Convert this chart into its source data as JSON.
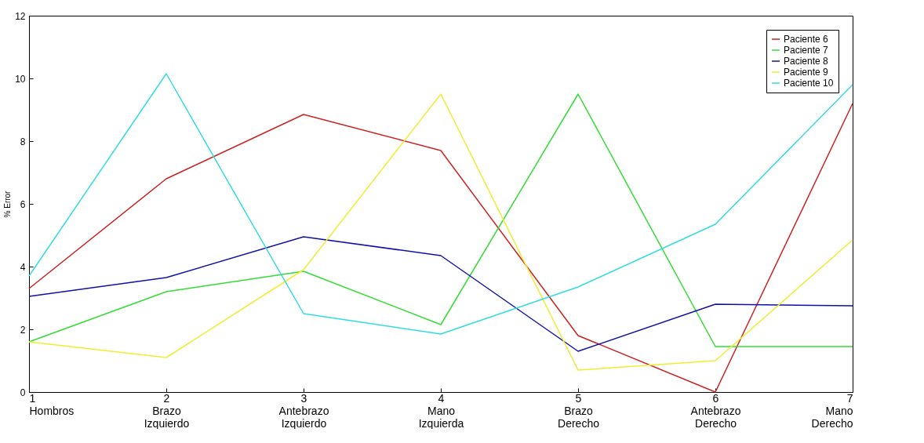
{
  "chart_data": {
    "type": "line",
    "ylabel": "% Error",
    "x": [
      1,
      2,
      3,
      4,
      5,
      6,
      7
    ],
    "xlim": [
      1,
      7
    ],
    "xticks": [
      1,
      2,
      3,
      4,
      5,
      6,
      7
    ],
    "ylim": [
      0,
      12
    ],
    "yticks": [
      0,
      2,
      4,
      6,
      8,
      10,
      12
    ],
    "annotations": [
      "Hombros",
      "Brazo Izquierdo",
      "Antebrazo Izquierdo",
      "Mano Izquierda",
      "Brazo Derecho",
      "Antebrazo Derecho",
      "Mano Derecho"
    ],
    "series": [
      {
        "name": "Paciente 6",
        "color": "#cc2222",
        "values": [
          3.3,
          6.8,
          8.85,
          7.7,
          1.8,
          0.0,
          9.2
        ]
      },
      {
        "name": "Paciente 7",
        "color": "#33dd33",
        "values": [
          1.6,
          3.2,
          3.85,
          2.15,
          9.5,
          1.45,
          1.45
        ]
      },
      {
        "name": "Paciente 8",
        "color": "#1111aa",
        "values": [
          3.05,
          3.65,
          4.95,
          4.35,
          1.3,
          2.8,
          2.75
        ]
      },
      {
        "name": "Paciente 9",
        "color": "#eeee33",
        "values": [
          1.6,
          1.1,
          3.9,
          9.5,
          0.7,
          1.0,
          4.85
        ]
      },
      {
        "name": "Paciente 10",
        "color": "#33dddd",
        "values": [
          3.7,
          10.15,
          2.5,
          1.85,
          3.35,
          5.35,
          9.8
        ]
      }
    ],
    "grid": false,
    "legend": "top right"
  }
}
